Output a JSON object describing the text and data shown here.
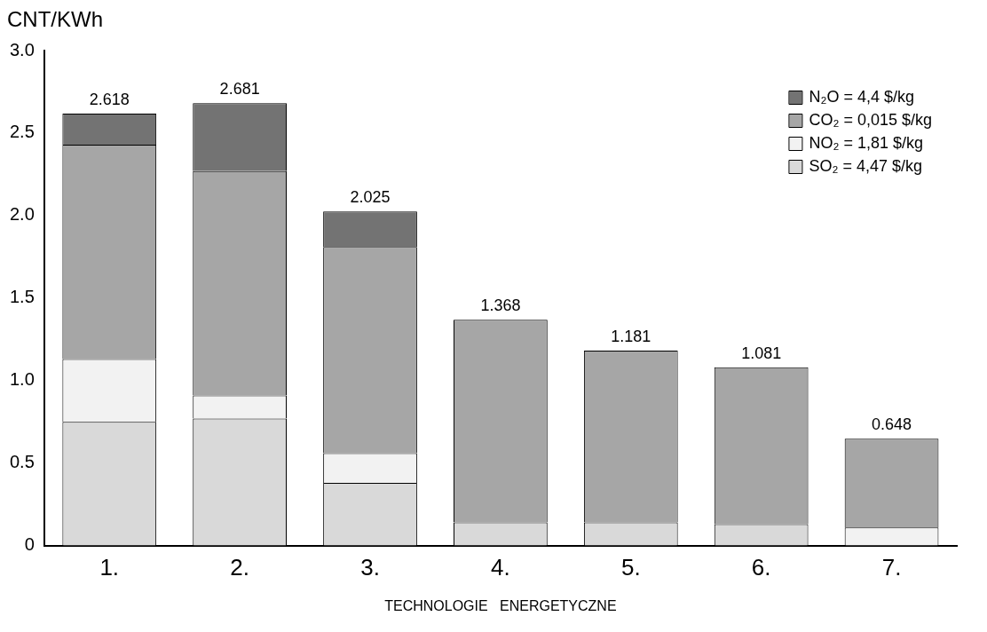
{
  "chart_data": {
    "type": "bar",
    "ylabel": "CNT/KWh",
    "xlabel": "TECHNOLOGIE   ENERGETYCZNE",
    "categories": [
      "1.",
      "2.",
      "3.",
      "4.",
      "5.",
      "6.",
      "7."
    ],
    "stacked": true,
    "series": [
      {
        "name": "SO₂ = 4,47 $/kg",
        "color": "#d9d9d9",
        "values": [
          0.75,
          0.77,
          0.38,
          0.14,
          0.14,
          0.13,
          0
        ]
      },
      {
        "name": "NO₂ = 1,81 $/kg",
        "color": "#f2f2f2",
        "values": [
          0.38,
          0.14,
          0.18,
          0,
          0,
          0,
          0.11
        ]
      },
      {
        "name": "CO₂ = 0,015 $/kg",
        "color": "#a6a6a6",
        "values": [
          1.3,
          1.36,
          1.25,
          1.228,
          1.041,
          0.951,
          0.538
        ]
      },
      {
        "name": "N₂O = 4,4 $/kg",
        "color": "#737373",
        "values": [
          0.188,
          0.411,
          0.215,
          0,
          0,
          0,
          0
        ]
      }
    ],
    "totals": [
      "2.618",
      "2.681",
      "2.025",
      "1.368",
      "1.181",
      "1.081",
      "0.648"
    ],
    "ylim": [
      0,
      3
    ],
    "yticks": [
      0,
      {
        "value": 0.5,
        "label": "0.5"
      },
      {
        "value": 1,
        "label": "1.0"
      },
      {
        "value": 1.5,
        "label": "1.5"
      },
      {
        "value": 2,
        "label": "2.0"
      },
      {
        "value": 2.5,
        "label": "2.5"
      },
      {
        "value": 3,
        "label": "3.0"
      }
    ],
    "grid": false,
    "legend": "top right"
  }
}
